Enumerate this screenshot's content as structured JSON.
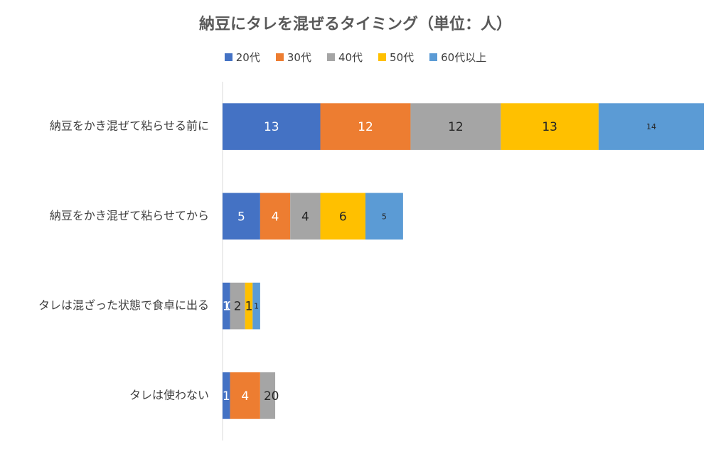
{
  "chart_data": {
    "type": "bar",
    "orientation": "horizontal",
    "stacked": true,
    "title": "納豆にタレを混ぜるタイミング（単位：人）",
    "legend_position": "top",
    "categories": [
      "納豆をかき混ぜて粘らせる前に",
      "納豆をかき混ぜて粘らせてから",
      "タレは混ざった状態で食卓に出る",
      "タレは使わない"
    ],
    "series": [
      {
        "name": "20代",
        "color": "#4472c4",
        "values": [
          13,
          5,
          1,
          1
        ]
      },
      {
        "name": "30代",
        "color": "#ed7d31",
        "values": [
          12,
          4,
          0,
          4
        ]
      },
      {
        "name": "40代",
        "color": "#a5a5a5",
        "values": [
          12,
          4,
          2,
          2
        ]
      },
      {
        "name": "50代",
        "color": "#ffc000",
        "values": [
          13,
          6,
          1,
          0
        ]
      },
      {
        "name": "60代以上",
        "color": "#5b9bd5",
        "values": [
          14,
          5,
          1,
          0
        ]
      }
    ],
    "data_labels": [
      [
        "13",
        "12",
        "12",
        "13",
        "14"
      ],
      [
        "5",
        "4",
        "4",
        "6",
        "5"
      ],
      [
        "1",
        "0",
        "2",
        "1",
        "1"
      ],
      [
        "1",
        "4",
        "2",
        "0",
        ""
      ]
    ],
    "label_colors": [
      [
        "#ffffff",
        "#ffffff",
        "#262626",
        "#262626",
        "#262626"
      ],
      [
        "#ffffff",
        "#ffffff",
        "#262626",
        "#262626",
        "#262626"
      ],
      [
        "#ffffff",
        "#ffffff",
        "#262626",
        "#262626",
        "#262626"
      ],
      [
        "#ffffff",
        "#ffffff",
        "#262626",
        "#262626",
        "#262626"
      ]
    ],
    "xlim": [
      0,
      64
    ],
    "grid": false
  }
}
